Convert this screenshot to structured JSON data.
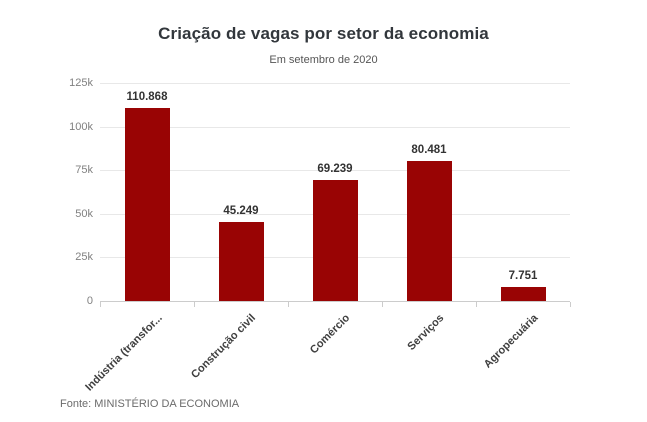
{
  "chart_data": {
    "type": "bar",
    "title": "Criação de vagas por setor da economia",
    "subtitle": "Em setembro de 2020",
    "source": "Fonte: MINISTÉRIO DA ECONOMIA",
    "categories": [
      "Indústria (transfor...",
      "Construção civil",
      "Comércio",
      "Serviços",
      "Agropecuária"
    ],
    "values": [
      110868,
      45249,
      69239,
      80481,
      7751
    ],
    "value_labels": [
      "110.868",
      "45.249",
      "69.239",
      "80.481",
      "7.751"
    ],
    "xlabel": "",
    "ylabel": "",
    "ylim": [
      0,
      125000
    ],
    "yticks": [
      {
        "value": 0,
        "label": "0"
      },
      {
        "value": 25000,
        "label": "25k"
      },
      {
        "value": 50000,
        "label": "50k"
      },
      {
        "value": 75000,
        "label": "75k"
      },
      {
        "value": 100000,
        "label": "100k"
      },
      {
        "value": 125000,
        "label": "125k"
      }
    ],
    "grid": true,
    "legend": false,
    "colors": {
      "bar": "#990404",
      "title": "#32373c",
      "subtitle": "#555555",
      "value_label": "#333333",
      "axis_label": "#808080",
      "category_label": "#3f3f3f",
      "gridline": "#e8e8e8",
      "axis_line": "#cccccc",
      "source": "#6b6b6b"
    }
  }
}
